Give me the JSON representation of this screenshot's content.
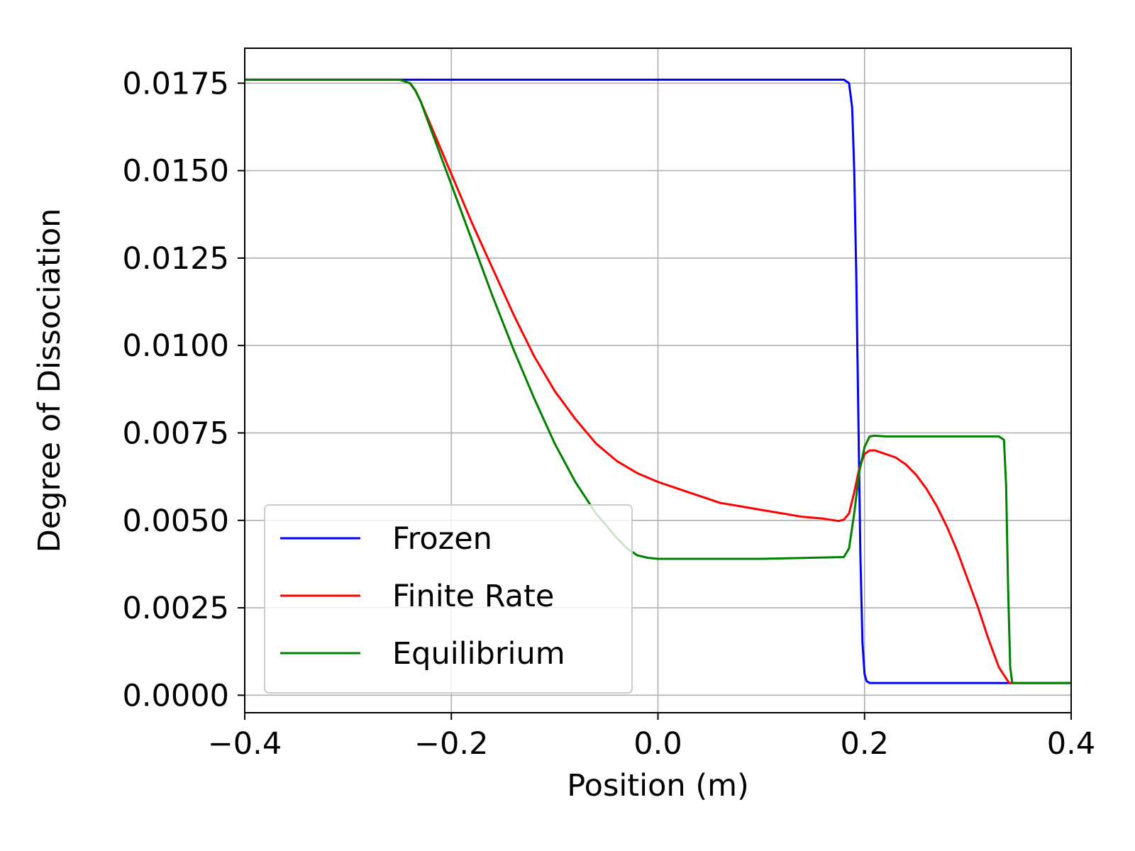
{
  "chart_data": {
    "type": "line",
    "xlabel": "Position (m)",
    "ylabel": "Degree of Dissociation",
    "xlim": [
      -0.4,
      0.4
    ],
    "ylim": [
      -0.0005,
      0.0185
    ],
    "xticks": [
      -0.4,
      -0.2,
      0.0,
      0.2,
      0.4
    ],
    "xtick_labels": [
      "−0.4",
      "−0.2",
      "0.0",
      "0.2",
      "0.4"
    ],
    "yticks": [
      0.0,
      0.0025,
      0.005,
      0.0075,
      0.01,
      0.0125,
      0.015,
      0.0175
    ],
    "ytick_labels": [
      "0.0000",
      "0.0025",
      "0.0050",
      "0.0075",
      "0.0100",
      "0.0125",
      "0.0150",
      "0.0175"
    ],
    "grid": true,
    "legend_position": "lower-left",
    "series": [
      {
        "name": "Frozen",
        "color": "#0000ff",
        "points": [
          [
            -0.4,
            0.0176
          ],
          [
            -0.2,
            0.0176
          ],
          [
            0.0,
            0.0176
          ],
          [
            0.18,
            0.0176
          ],
          [
            0.185,
            0.0175
          ],
          [
            0.188,
            0.0168
          ],
          [
            0.19,
            0.015
          ],
          [
            0.192,
            0.012
          ],
          [
            0.194,
            0.008
          ],
          [
            0.196,
            0.004
          ],
          [
            0.198,
            0.0015
          ],
          [
            0.2,
            0.0006
          ],
          [
            0.202,
            0.0004
          ],
          [
            0.205,
            0.00035
          ],
          [
            0.25,
            0.00035
          ],
          [
            0.34,
            0.00035
          ],
          [
            0.4,
            0.00035
          ]
        ]
      },
      {
        "name": "Finite Rate",
        "color": "#ff0000",
        "points": [
          [
            -0.4,
            0.0176
          ],
          [
            -0.25,
            0.0176
          ],
          [
            -0.245,
            0.01755
          ],
          [
            -0.24,
            0.0175
          ],
          [
            -0.235,
            0.0173
          ],
          [
            -0.23,
            0.017
          ],
          [
            -0.22,
            0.0163
          ],
          [
            -0.21,
            0.0156
          ],
          [
            -0.2,
            0.0149
          ],
          [
            -0.18,
            0.0135
          ],
          [
            -0.16,
            0.0122
          ],
          [
            -0.14,
            0.0109
          ],
          [
            -0.12,
            0.0097
          ],
          [
            -0.1,
            0.0087
          ],
          [
            -0.08,
            0.0079
          ],
          [
            -0.06,
            0.0072
          ],
          [
            -0.04,
            0.0067
          ],
          [
            -0.02,
            0.00635
          ],
          [
            0.0,
            0.0061
          ],
          [
            0.02,
            0.0059
          ],
          [
            0.04,
            0.0057
          ],
          [
            0.06,
            0.0055
          ],
          [
            0.08,
            0.0054
          ],
          [
            0.1,
            0.0053
          ],
          [
            0.12,
            0.0052
          ],
          [
            0.14,
            0.0051
          ],
          [
            0.16,
            0.00505
          ],
          [
            0.175,
            0.00498
          ],
          [
            0.18,
            0.00502
          ],
          [
            0.185,
            0.0052
          ],
          [
            0.19,
            0.0058
          ],
          [
            0.195,
            0.0065
          ],
          [
            0.2,
            0.0069
          ],
          [
            0.205,
            0.007
          ],
          [
            0.21,
            0.007
          ],
          [
            0.22,
            0.0069
          ],
          [
            0.23,
            0.0068
          ],
          [
            0.24,
            0.0066
          ],
          [
            0.25,
            0.0063
          ],
          [
            0.26,
            0.0059
          ],
          [
            0.27,
            0.0054
          ],
          [
            0.28,
            0.0048
          ],
          [
            0.29,
            0.0041
          ],
          [
            0.3,
            0.0033
          ],
          [
            0.31,
            0.0025
          ],
          [
            0.32,
            0.0016
          ],
          [
            0.33,
            0.0008
          ],
          [
            0.34,
            0.00035
          ],
          [
            0.4,
            0.00035
          ]
        ]
      },
      {
        "name": "Equilibrium",
        "color": "#008000",
        "points": [
          [
            -0.4,
            0.0176
          ],
          [
            -0.25,
            0.0176
          ],
          [
            -0.245,
            0.01755
          ],
          [
            -0.24,
            0.0175
          ],
          [
            -0.235,
            0.0173
          ],
          [
            -0.23,
            0.017
          ],
          [
            -0.22,
            0.0162
          ],
          [
            -0.21,
            0.0154
          ],
          [
            -0.2,
            0.0146
          ],
          [
            -0.18,
            0.013
          ],
          [
            -0.16,
            0.0114
          ],
          [
            -0.14,
            0.0099
          ],
          [
            -0.12,
            0.0085
          ],
          [
            -0.1,
            0.0072
          ],
          [
            -0.08,
            0.0061
          ],
          [
            -0.06,
            0.0052
          ],
          [
            -0.04,
            0.0045
          ],
          [
            -0.03,
            0.0042
          ],
          [
            -0.02,
            0.004
          ],
          [
            -0.01,
            0.00393
          ],
          [
            0.0,
            0.0039
          ],
          [
            0.1,
            0.0039
          ],
          [
            0.18,
            0.00395
          ],
          [
            0.185,
            0.0042
          ],
          [
            0.19,
            0.0052
          ],
          [
            0.195,
            0.0064
          ],
          [
            0.2,
            0.0071
          ],
          [
            0.205,
            0.0074
          ],
          [
            0.21,
            0.00742
          ],
          [
            0.22,
            0.0074
          ],
          [
            0.3,
            0.0074
          ],
          [
            0.33,
            0.0074
          ],
          [
            0.335,
            0.0073
          ],
          [
            0.337,
            0.006
          ],
          [
            0.339,
            0.003
          ],
          [
            0.341,
            0.0008
          ],
          [
            0.343,
            0.00035
          ],
          [
            0.4,
            0.00035
          ]
        ]
      }
    ]
  }
}
